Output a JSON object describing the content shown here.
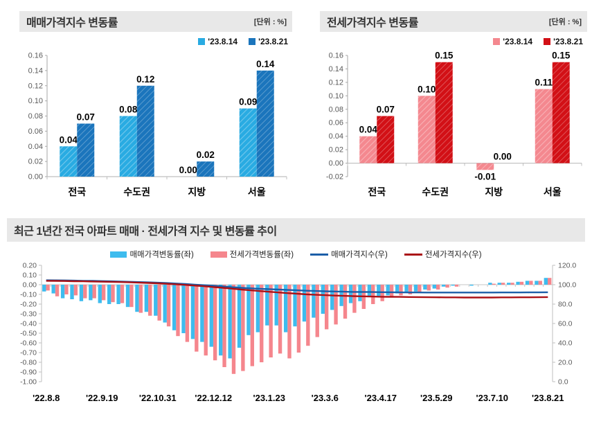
{
  "colors": {
    "sale_light": "#29abe2",
    "sale_dark": "#1b75bc",
    "jeonse_light": "#f4888f",
    "jeonse_dark": "#d21016",
    "trend_bar_sale": "#3ebcee",
    "trend_bar_jeonse": "#f5868d",
    "trend_line_sale": "#1b5ea8",
    "trend_line_jeonse": "#aa1116",
    "axis": "#bfbfbf",
    "tick_text": "#595959"
  },
  "chart_data": [
    {
      "id": "sale",
      "type": "bar",
      "title": "매매가격지수 변동률",
      "unit_label": "[단위 : %]",
      "categories": [
        "전국",
        "수도권",
        "지방",
        "서울"
      ],
      "series": [
        {
          "name": "'23.8.14",
          "color": "#29abe2",
          "values": [
            0.04,
            0.08,
            0.0,
            0.09
          ]
        },
        {
          "name": "'23.8.21",
          "color": "#1b75bc",
          "values": [
            0.07,
            0.12,
            0.02,
            0.14
          ]
        }
      ],
      "ylim": [
        0.0,
        0.16
      ],
      "ytick_step": 0.02,
      "grid": false,
      "legend_position": "top-right"
    },
    {
      "id": "jeonse",
      "type": "bar",
      "title": "전세가격지수 변동률",
      "unit_label": "[단위 : %]",
      "categories": [
        "전국",
        "수도권",
        "지방",
        "서울"
      ],
      "series": [
        {
          "name": "'23.8.14",
          "color": "#f4888f",
          "values": [
            0.04,
            0.1,
            -0.01,
            0.11
          ]
        },
        {
          "name": "'23.8.21",
          "color": "#d21016",
          "values": [
            0.07,
            0.15,
            0.0,
            0.15
          ]
        }
      ],
      "ylim": [
        -0.02,
        0.16
      ],
      "ytick_step": 0.02,
      "grid": false,
      "legend_position": "top-right"
    },
    {
      "id": "trend",
      "type": "combo",
      "title": "최근 1년간 전국 아파트 매매 · 전세가격 지수 및 변동률 추이",
      "x_labels": [
        "'22.8.8",
        "'22.9.19",
        "'22.10.31",
        "'22.12.12",
        "'23.1.23",
        "'23.3.6",
        "'23.4.17",
        "'23.5.29",
        "'23.7.10",
        "'23.8.21"
      ],
      "label_every": 6,
      "weeks": 55,
      "left_axis": {
        "min": -1.0,
        "max": 0.2,
        "step": 0.1
      },
      "right_axis": {
        "min": 0.0,
        "max": 120.0,
        "step": 20.0
      },
      "bar_series": [
        {
          "name": "매매가격변동률(좌)",
          "color": "#3ebcee",
          "axis": "left",
          "values": [
            -0.07,
            -0.09,
            -0.14,
            -0.15,
            -0.17,
            -0.16,
            -0.19,
            -0.2,
            -0.2,
            -0.23,
            -0.28,
            -0.28,
            -0.32,
            -0.39,
            -0.47,
            -0.5,
            -0.56,
            -0.59,
            -0.64,
            -0.73,
            -0.76,
            -0.65,
            -0.52,
            -0.49,
            -0.42,
            -0.42,
            -0.49,
            -0.43,
            -0.38,
            -0.34,
            -0.3,
            -0.26,
            -0.22,
            -0.19,
            -0.17,
            -0.13,
            -0.13,
            -0.11,
            -0.09,
            -0.08,
            -0.07,
            -0.05,
            -0.04,
            -0.02,
            -0.01,
            0.0,
            -0.01,
            0.0,
            0.02,
            0.02,
            0.02,
            0.03,
            0.04,
            0.04,
            0.07
          ]
        },
        {
          "name": "전세가격변동률(좌)",
          "color": "#f5868d",
          "axis": "left",
          "values": [
            -0.06,
            -0.12,
            -0.1,
            -0.11,
            -0.14,
            -0.14,
            -0.16,
            -0.18,
            -0.19,
            -0.23,
            -0.29,
            -0.32,
            -0.37,
            -0.43,
            -0.53,
            -0.59,
            -0.69,
            -0.73,
            -0.78,
            -0.85,
            -0.92,
            -0.89,
            -0.84,
            -0.8,
            -0.75,
            -0.71,
            -0.76,
            -0.7,
            -0.63,
            -0.54,
            -0.46,
            -0.41,
            -0.35,
            -0.29,
            -0.25,
            -0.2,
            -0.17,
            -0.13,
            -0.11,
            -0.1,
            -0.08,
            -0.06,
            -0.05,
            -0.03,
            -0.02,
            0.0,
            0.0,
            0.0,
            0.01,
            0.02,
            0.02,
            0.03,
            0.04,
            0.04,
            0.07
          ]
        }
      ],
      "line_series": [
        {
          "name": "매매가격지수(우)",
          "color": "#1b5ea8",
          "axis": "right",
          "values": [
            104.6,
            104.5,
            104.4,
            104.2,
            104.0,
            103.9,
            103.7,
            103.5,
            103.3,
            103.0,
            102.7,
            102.4,
            102.1,
            101.7,
            101.2,
            100.7,
            100.1,
            99.5,
            98.9,
            98.2,
            97.4,
            96.8,
            96.3,
            95.8,
            95.4,
            95.0,
            94.6,
            94.2,
            93.8,
            93.5,
            93.2,
            93.0,
            92.8,
            92.6,
            92.5,
            92.4,
            92.3,
            92.2,
            92.1,
            92.0,
            92.0,
            91.9,
            91.9,
            91.9,
            91.9,
            91.9,
            91.9,
            91.9,
            91.9,
            92.0,
            92.0,
            92.0,
            92.1,
            92.1,
            92.2
          ]
        },
        {
          "name": "전세가격지수(우)",
          "color": "#aa1116",
          "axis": "right",
          "values": [
            104.0,
            103.9,
            103.8,
            103.6,
            103.5,
            103.3,
            103.1,
            102.9,
            102.7,
            102.4,
            102.1,
            101.8,
            101.4,
            100.9,
            100.4,
            99.8,
            99.1,
            98.4,
            97.6,
            96.8,
            95.9,
            95.0,
            94.2,
            93.4,
            92.7,
            92.0,
            91.3,
            90.7,
            90.1,
            89.6,
            89.2,
            88.8,
            88.5,
            88.2,
            88.0,
            87.8,
            87.6,
            87.5,
            87.4,
            87.3,
            87.2,
            87.1,
            87.0,
            86.9,
            86.9,
            86.8,
            86.8,
            86.8,
            86.8,
            86.9,
            86.9,
            87.0,
            87.0,
            87.1,
            87.2
          ]
        }
      ]
    }
  ]
}
